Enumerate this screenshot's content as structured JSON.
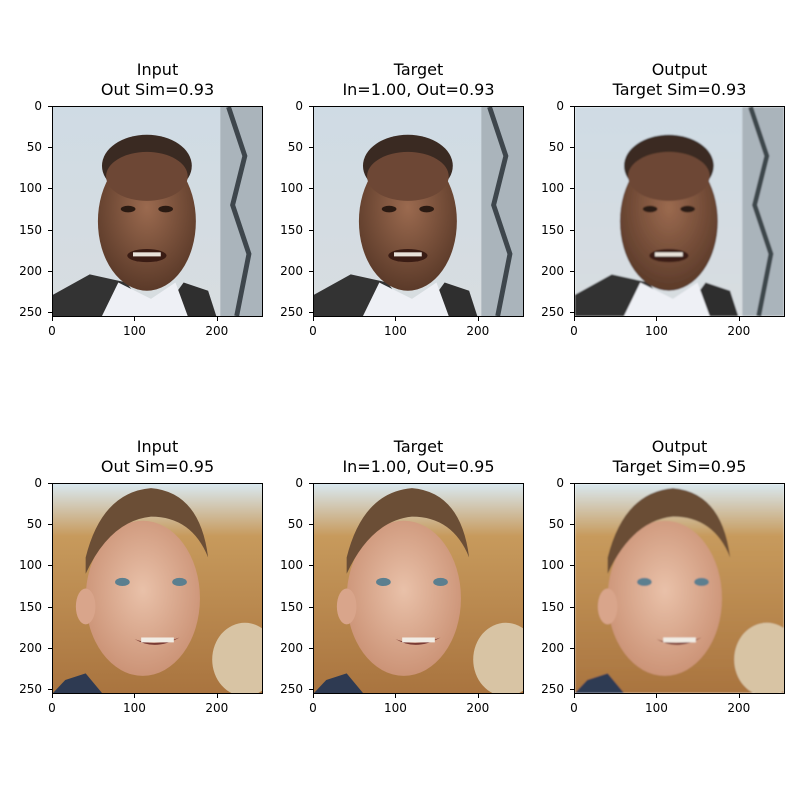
{
  "rows": [
    {
      "panels": [
        {
          "title_line1": "Input",
          "title_line2": "Out Sim=0.93",
          "image": "bald-man-face"
        },
        {
          "title_line1": "Target",
          "title_line2": "In=1.00, Out=0.93",
          "image": "bald-man-face"
        },
        {
          "title_line1": "Output",
          "title_line2": "Target Sim=0.93",
          "image": "bald-man-face-reconstructed"
        }
      ]
    },
    {
      "panels": [
        {
          "title_line1": "Input",
          "title_line2": "Out Sim=0.95",
          "image": "smiling-man-face"
        },
        {
          "title_line1": "Target",
          "title_line2": "In=1.00, Out=0.95",
          "image": "smiling-man-face"
        },
        {
          "title_line1": "Output",
          "title_line2": "Target Sim=0.95",
          "image": "smiling-man-face-reconstructed"
        }
      ]
    }
  ],
  "axes": {
    "y_ticks": [
      "0",
      "50",
      "100",
      "150",
      "200",
      "250"
    ],
    "x_ticks": [
      "0",
      "100",
      "200"
    ]
  }
}
